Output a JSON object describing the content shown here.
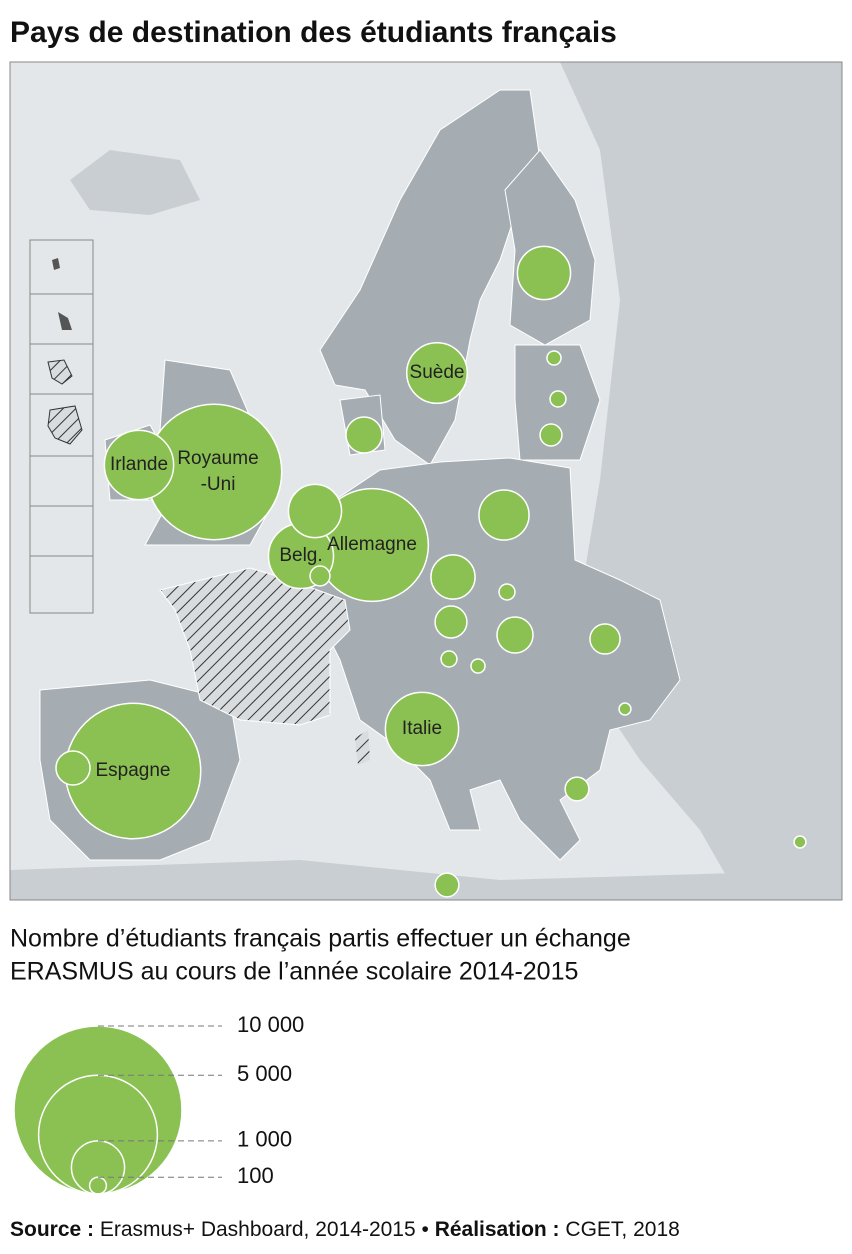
{
  "title": "Pays de destination des étudiants français",
  "bubbles": [
    {
      "label": [
        "Royaume",
        "-Uni"
      ],
      "value": 6500
    },
    {
      "label": [
        "Espagne"
      ],
      "value": 6500
    },
    {
      "label": [
        "Allemagne"
      ],
      "value": 4500
    },
    {
      "label": [
        "Irlande"
      ],
      "value": 1700
    },
    {
      "label": [
        "Italie"
      ],
      "value": 1900
    },
    {
      "label": [
        "Suède"
      ],
      "value": 1300
    },
    {
      "label": [
        "Belg."
      ],
      "value": 1500
    },
    {
      "value": 1000
    },
    {
      "value": 1000
    },
    {
      "value": 460
    },
    {
      "value": 890
    },
    {
      "value": 690
    },
    {
      "value": 360
    },
    {
      "value": 460
    },
    {
      "value": 320
    },
    {
      "value": 140
    },
    {
      "value": 410
    },
    {
      "value": 70
    },
    {
      "value": 90
    },
    {
      "value": 170
    },
    {
      "value": 90
    },
    {
      "value": 90
    },
    {
      "value": 70
    },
    {
      "value": 50
    },
    {
      "value": 200
    },
    {
      "value": 50
    },
    {
      "value": 200
    }
  ],
  "bubble_color": "#8bc152",
  "legend": {
    "title": [
      "Nombre d’étudiants français partis effectuer un échange",
      "ERASMUS au cours de l’année scolaire 2014-2015"
    ],
    "ticks": [
      {
        "value": 10000,
        "label": "10 000"
      },
      {
        "value": 5000,
        "label": "5 000"
      },
      {
        "value": 1000,
        "label": "1 000"
      },
      100
    ]
  },
  "source": {
    "label1": "Source :",
    "text1": "Erasmus+ Dashboard, 2014-2015 •",
    "label2": "Réalisation :",
    "text2": "CGET, 2018"
  }
}
